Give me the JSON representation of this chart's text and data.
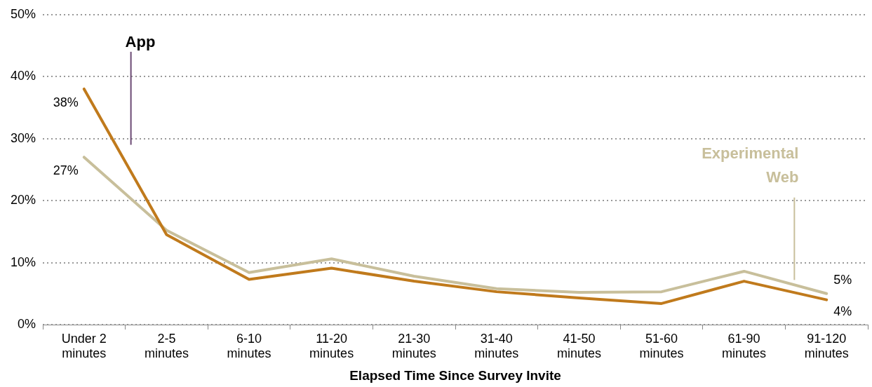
{
  "chart_data": {
    "type": "line",
    "xlabel": "Elapsed Time Since Survey Invite",
    "categories": [
      "Under 2\nminutes",
      "2-5\nminutes",
      "6-10\nminutes",
      "11-20\nminutes",
      "21-30\nminutes",
      "31-40\nminutes",
      "41-50\nminutes",
      "51-60\nminutes",
      "61-90\nminutes",
      "91-120\nminutes"
    ],
    "series": [
      {
        "name": "App",
        "color": "#c07a1c",
        "values": [
          38,
          14.5,
          7.3,
          9.1,
          7.0,
          5.3,
          4.3,
          3.4,
          7.0,
          4
        ],
        "value_labels": [
          "38%",
          null,
          null,
          null,
          null,
          null,
          null,
          null,
          null,
          "4%"
        ]
      },
      {
        "name": "Experimental\nWeb",
        "color": "#c8bf9b",
        "values": [
          27,
          15.2,
          8.4,
          10.6,
          7.8,
          5.8,
          5.2,
          5.3,
          8.6,
          5
        ],
        "value_labels": [
          "27%",
          null,
          null,
          null,
          null,
          null,
          null,
          null,
          null,
          "5%"
        ]
      }
    ],
    "ylim": [
      0,
      50
    ],
    "yticks": [
      {
        "value": 0,
        "label": "0%"
      },
      {
        "value": 10,
        "label": "10%"
      },
      {
        "value": 20,
        "label": "20%"
      },
      {
        "value": 30,
        "label": "30%"
      },
      {
        "value": 40,
        "label": "40%"
      },
      {
        "value": 50,
        "label": "50%"
      }
    ],
    "grid": "y",
    "legend": false,
    "marker": "none",
    "line_style": "solid"
  }
}
